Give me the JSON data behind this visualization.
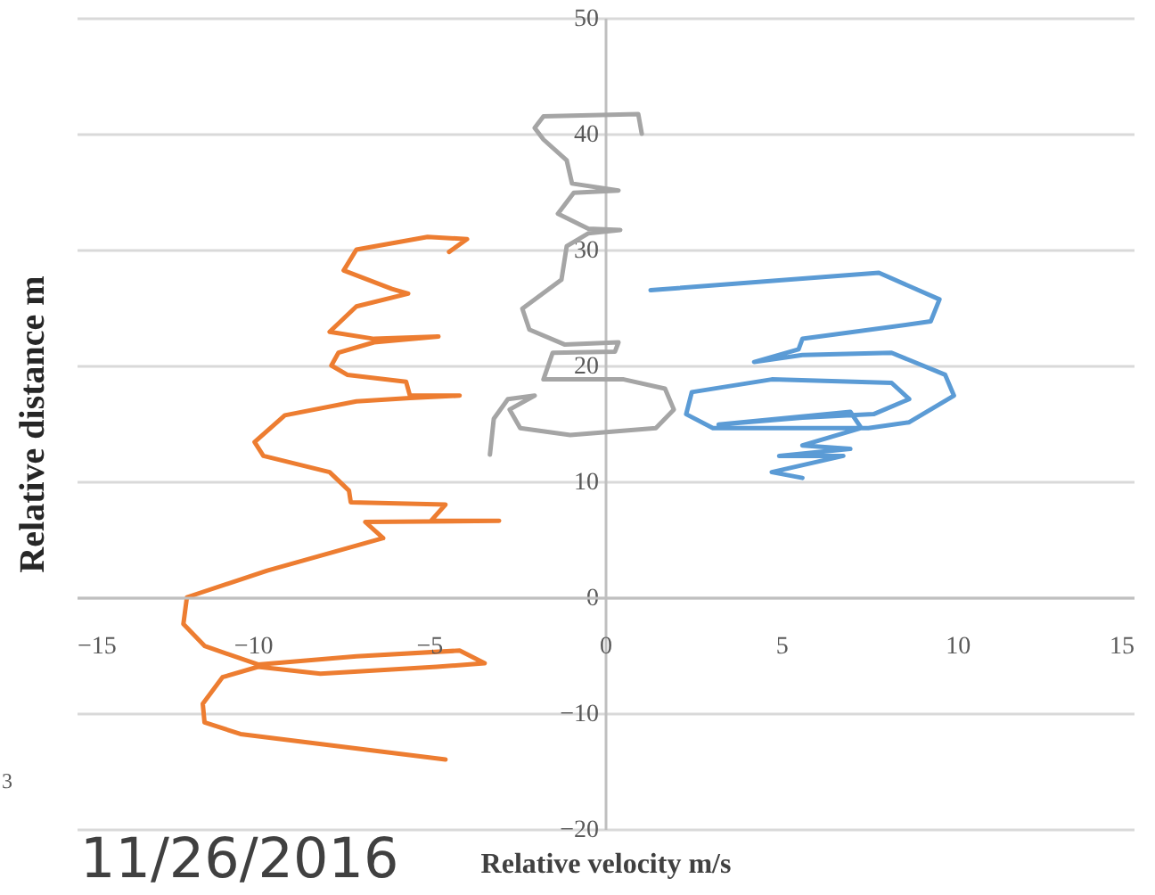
{
  "chart_data": {
    "type": "line",
    "xlabel": "Relative velocity m/s",
    "ylabel": "Relative distance m",
    "xlim": [
      -15,
      15
    ],
    "xticks": [
      -15,
      -10,
      -5,
      0,
      5,
      10,
      15
    ],
    "ylim": [
      -20,
      50
    ],
    "yticks": [
      -20,
      -10,
      0,
      10,
      20,
      30,
      40,
      50
    ],
    "grid": "y",
    "marker": "none",
    "line_style": "solid",
    "annotations": [
      "11/26/2016",
      "3"
    ],
    "series": [
      {
        "color": "#ed7d31",
        "x": [
          -4.43,
          -3.92,
          -5.04,
          -7.06,
          -7.42,
          -6.05,
          -5.59,
          -7.06,
          -7.82,
          -6.56,
          -4.73,
          -6.56,
          -7.57,
          -7.77,
          -7.32,
          -5.65,
          -5.54,
          -4.13,
          -5.54,
          -7.06,
          -9.09,
          -9.95,
          -9.7,
          -7.82,
          -7.27,
          -7.22,
          -4.53,
          -4.94,
          -3.01,
          -6.81,
          -6.3,
          -9.59,
          -11.87,
          -11.97,
          -11.37,
          -9.85,
          -7.06,
          -4.13,
          -3.42,
          -4.78,
          -8.08,
          -9.85,
          -10.86,
          -11.42,
          -11.37,
          -10.35,
          -4.53
        ],
        "values": [
          29.8,
          30.9,
          31.1,
          30.0,
          28.2,
          26.6,
          26.2,
          25.1,
          22.9,
          22.3,
          22.5,
          22.0,
          21.1,
          20.0,
          19.2,
          18.6,
          17.4,
          17.4,
          17.2,
          16.9,
          15.7,
          13.4,
          12.2,
          10.8,
          9.2,
          8.2,
          8.0,
          6.6,
          6.6,
          6.5,
          5.1,
          2.3,
          0,
          -2.3,
          -4.2,
          -5.8,
          -5.1,
          -4.6,
          -5.7,
          -6.0,
          -6.6,
          -6.0,
          -6.9,
          -9.2,
          -10.8,
          -11.8,
          -14.0
        ]
      },
      {
        "color": "#a5a5a5",
        "x": [
          1.04,
          0.94,
          -1.75,
          -2.0,
          -1.75,
          -1.09,
          -0.94,
          0.38,
          -0.89,
          -1.34,
          -0.48,
          0.43,
          -0.48,
          -1.09,
          -1.24,
          -2.35,
          -2.15,
          -1.14,
          0.38,
          0.28,
          -1.49,
          -1.75,
          0.53,
          1.7,
          1.95,
          1.44,
          -0.99,
          -2.41,
          -2.71,
          -2.0,
          -2.76,
          -3.16,
          -3.27
        ],
        "values": [
          40.0,
          41.7,
          41.5,
          40.5,
          39.5,
          37.7,
          35.7,
          35.1,
          34.9,
          33.1,
          31.8,
          31.7,
          31.4,
          30.3,
          27.4,
          24.9,
          23.1,
          21.8,
          22.0,
          21.2,
          21.1,
          18.8,
          18.8,
          18.0,
          16.2,
          14.6,
          14.0,
          14.6,
          16.2,
          17.4,
          17.1,
          15.4,
          12.3
        ]
      },
      {
        "color": "#5b9bd5",
        "x": [
          1.29,
          7.77,
          9.49,
          9.24,
          5.6,
          5.49,
          4.23,
          5.6,
          8.13,
          9.65,
          9.9,
          8.63,
          7.47,
          3.06,
          2.3,
          2.46,
          4.73,
          8.13,
          8.63,
          7.62,
          5.6,
          3.22,
          6.96,
          7.27,
          5.6,
          6.96,
          4.94,
          6.76,
          4.73,
          5.6
        ],
        "values": [
          26.5,
          28.0,
          25.7,
          23.8,
          22.3,
          21.4,
          20.3,
          20.9,
          21.1,
          19.2,
          17.4,
          15.1,
          14.6,
          14.6,
          15.8,
          17.7,
          18.8,
          18.5,
          17.1,
          15.8,
          15.5,
          14.9,
          16.0,
          14.6,
          13.1,
          12.8,
          12.2,
          12.2,
          10.8,
          10.3
        ]
      }
    ]
  }
}
